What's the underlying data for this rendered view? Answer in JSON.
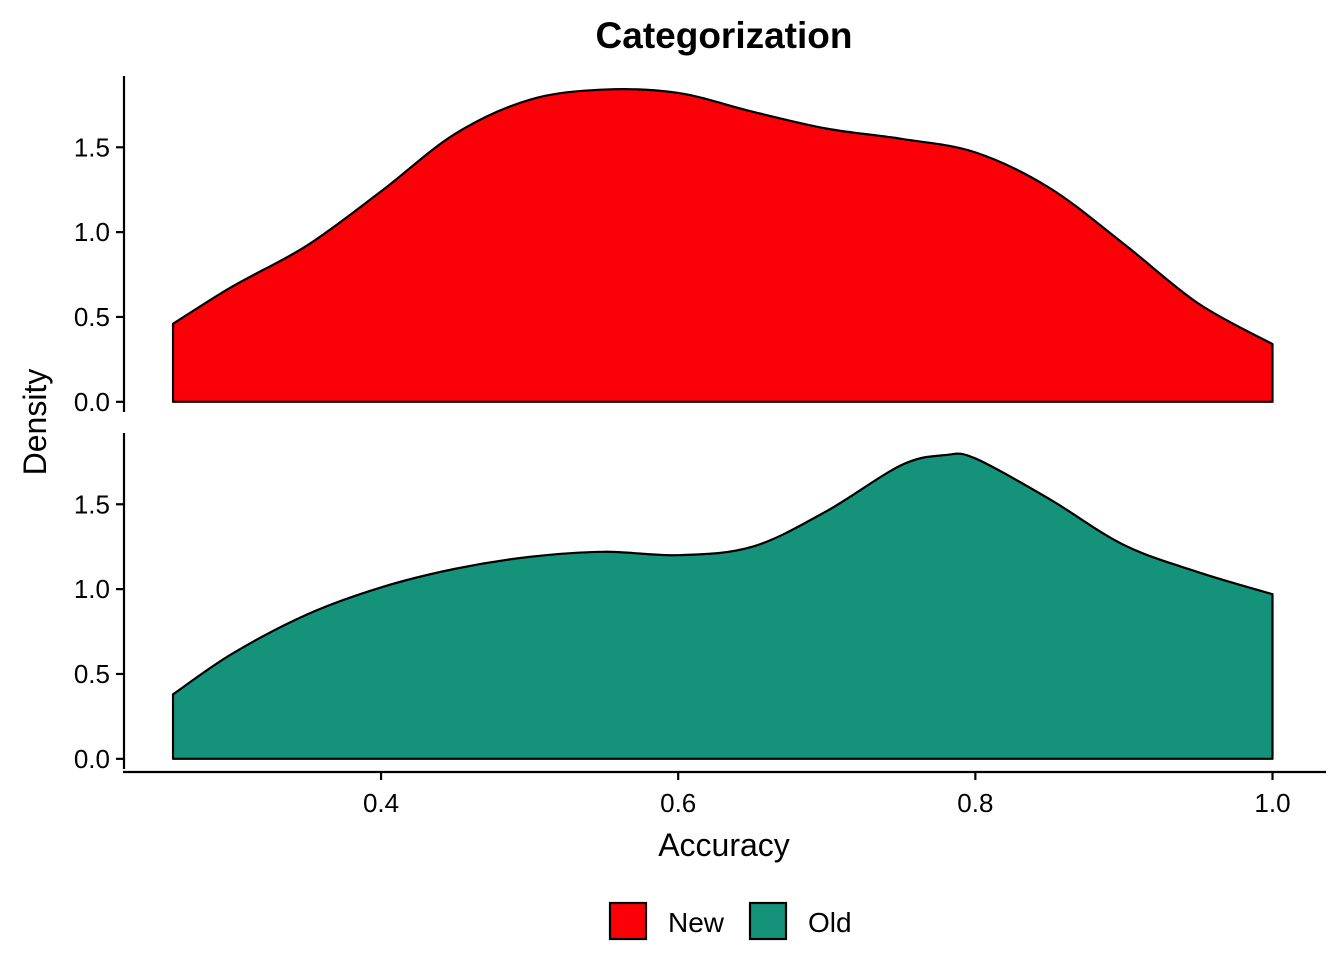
{
  "chart_data": {
    "type": "area",
    "subtype": "faceted-density",
    "title": "Categorization",
    "xlabel": "Accuracy",
    "ylabel": "Density",
    "xlim": [
      0.227,
      1.036
    ],
    "ylim": [
      -0.06,
      1.92
    ],
    "xticks": [
      {
        "value": 0.4,
        "label": "0.4"
      },
      {
        "value": 0.6,
        "label": "0.6"
      },
      {
        "value": 0.8,
        "label": "0.8"
      },
      {
        "value": 1.0,
        "label": "1.0"
      }
    ],
    "yticks": [
      {
        "value": 0.0,
        "label": "0.0"
      },
      {
        "value": 0.5,
        "label": "0.5"
      },
      {
        "value": 1.0,
        "label": "1.0"
      },
      {
        "value": 1.5,
        "label": "1.5"
      }
    ],
    "legend_position": "bottom",
    "series": [
      {
        "name": "New",
        "color": "#fc0007",
        "x": [
          0.26,
          0.3,
          0.35,
          0.4,
          0.45,
          0.5,
          0.55,
          0.6,
          0.65,
          0.7,
          0.75,
          0.8,
          0.85,
          0.9,
          0.95,
          1.0
        ],
        "y": [
          0.46,
          0.68,
          0.92,
          1.24,
          1.58,
          1.78,
          1.84,
          1.82,
          1.71,
          1.61,
          1.55,
          1.47,
          1.26,
          0.93,
          0.58,
          0.34
        ]
      },
      {
        "name": "Old",
        "color": "#15937a",
        "x": [
          0.26,
          0.3,
          0.35,
          0.4,
          0.45,
          0.5,
          0.55,
          0.6,
          0.65,
          0.7,
          0.75,
          0.78,
          0.8,
          0.85,
          0.9,
          0.95,
          1.0
        ],
        "y": [
          0.38,
          0.62,
          0.85,
          1.01,
          1.12,
          1.19,
          1.22,
          1.2,
          1.25,
          1.46,
          1.73,
          1.79,
          1.77,
          1.53,
          1.26,
          1.1,
          0.97
        ]
      }
    ]
  }
}
